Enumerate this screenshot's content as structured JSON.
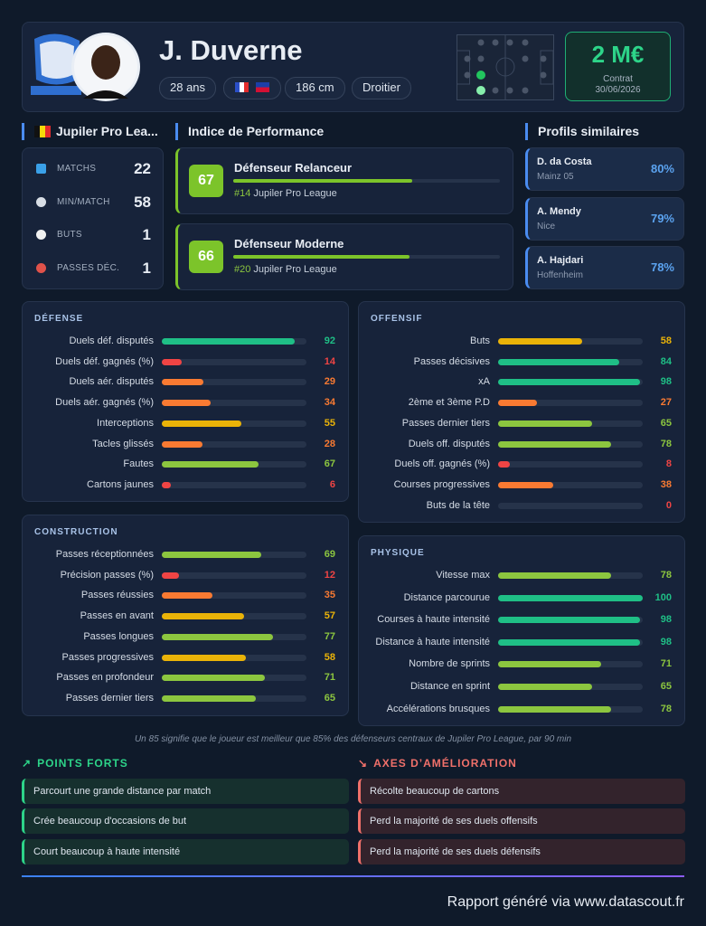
{
  "header": {
    "name": "J. Duverne",
    "tags": [
      "28 ans",
      "186 cm",
      "Droitier"
    ],
    "market_value": "2 M€",
    "contract_label": "Contrat",
    "contract_end": "30/06/2026"
  },
  "league": {
    "title": "Jupiler Pro Lea...",
    "stats": [
      {
        "label": "MATCHS",
        "value": 22
      },
      {
        "label": "MIN/MATCH",
        "value": 58
      },
      {
        "label": "BUTS",
        "value": 1
      },
      {
        "label": "PASSES DÉC.",
        "value": 1
      }
    ]
  },
  "performance": {
    "title": "Indice de Performance",
    "items": [
      {
        "score": 67,
        "role": "Défenseur Relanceur",
        "rank": "#14",
        "league": "Jupiler Pro League"
      },
      {
        "score": 66,
        "role": "Défenseur Moderne",
        "rank": "#20",
        "league": "Jupiler Pro League"
      }
    ]
  },
  "similar": {
    "title": "Profils similaires",
    "items": [
      {
        "name": "D. da Costa",
        "club": "Mainz 05",
        "match": "80%"
      },
      {
        "name": "A. Mendy",
        "club": "Nice",
        "match": "79%"
      },
      {
        "name": "A. Hajdari",
        "club": "Hoffenheim",
        "match": "78%"
      }
    ]
  },
  "sections": [
    {
      "title": "DÉFENSE",
      "rows": [
        {
          "label": "Duels déf. disputés",
          "value": 92
        },
        {
          "label": "Duels déf. gagnés (%)",
          "value": 14
        },
        {
          "label": "Duels aér. disputés",
          "value": 29
        },
        {
          "label": "Duels aér. gagnés (%)",
          "value": 34
        },
        {
          "label": "Interceptions",
          "value": 55
        },
        {
          "label": "Tacles glissés",
          "value": 28
        },
        {
          "label": "Fautes",
          "value": 67
        },
        {
          "label": "Cartons jaunes",
          "value": 6
        }
      ]
    },
    {
      "title": "OFFENSIF",
      "rows": [
        {
          "label": "Buts",
          "value": 58
        },
        {
          "label": "Passes décisives",
          "value": 84
        },
        {
          "label": "xA",
          "value": 98
        },
        {
          "label": "2ème et 3ème P.D",
          "value": 27
        },
        {
          "label": "Passes dernier tiers",
          "value": 65
        },
        {
          "label": "Duels off. disputés",
          "value": 78
        },
        {
          "label": "Duels off. gagnés (%)",
          "value": 8
        },
        {
          "label": "Courses progressives",
          "value": 38
        },
        {
          "label": "Buts de la tête",
          "value": 0
        }
      ]
    },
    {
      "title": "CONSTRUCTION",
      "rows": [
        {
          "label": "Passes réceptionnées",
          "value": 69
        },
        {
          "label": "Précision passes (%)",
          "value": 12
        },
        {
          "label": "Passes réussies",
          "value": 35
        },
        {
          "label": "Passes en avant",
          "value": 57
        },
        {
          "label": "Passes longues",
          "value": 77
        },
        {
          "label": "Passes progressives",
          "value": 58
        },
        {
          "label": "Passes en profondeur",
          "value": 71
        },
        {
          "label": "Passes dernier tiers",
          "value": 65
        }
      ]
    },
    {
      "title": "PHYSIQUE",
      "rows": [
        {
          "label": "Vitesse max",
          "value": 78
        },
        {
          "label": "Distance parcourue",
          "value": 100
        },
        {
          "label": "Courses à haute intensité",
          "value": 98
        },
        {
          "label": "Distance à haute intensité",
          "value": 98
        },
        {
          "label": "Nombre de sprints",
          "value": 71
        },
        {
          "label": "Distance en sprint",
          "value": 65
        },
        {
          "label": "Accélérations brusques",
          "value": 78
        }
      ]
    }
  ],
  "footnote": "Un 85 signifie que le joueur est meilleur que 85% des défenseurs centraux de Jupiler Pro League, par 90 min",
  "strengths": {
    "title": "POINTS FORTS",
    "items": [
      "Parcourt une grande distance par match",
      "Crée beaucoup d'occasions de but",
      "Court beaucoup à haute intensité"
    ]
  },
  "improvements": {
    "title": "AXES D’AMÉLIORATION",
    "items": [
      "Récolte beaucoup de cartons",
      "Perd la majorité de ses duels offensifs",
      "Perd la majorité de ses duels défensifs"
    ]
  },
  "footer": "Rapport généré via www.datascout.fr"
}
